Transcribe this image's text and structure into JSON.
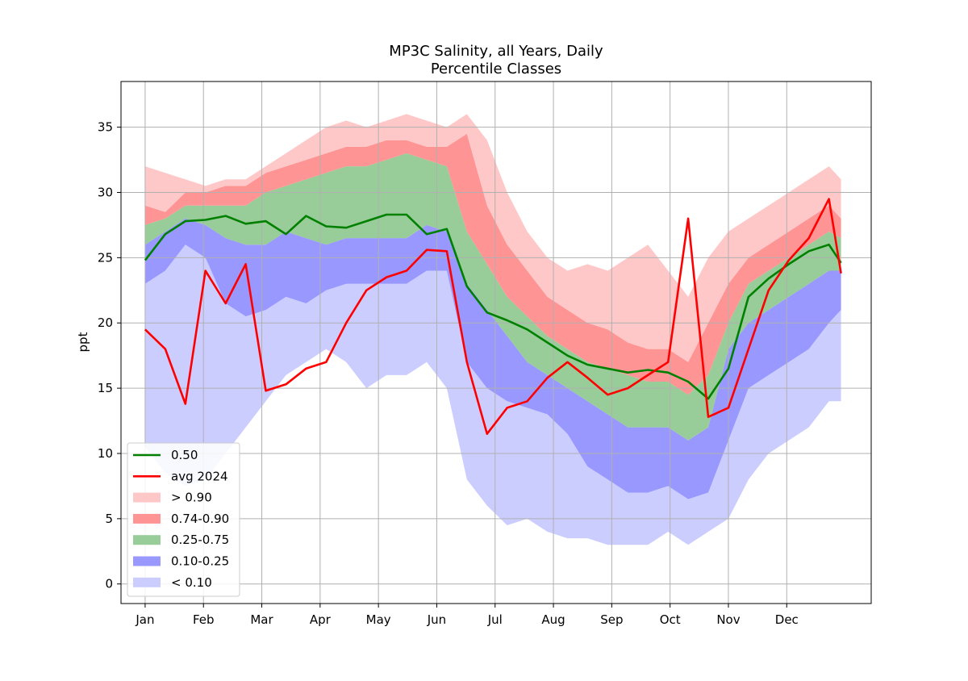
{
  "chart_data": {
    "type": "area",
    "title": "MP3C Salinity, all Years, Daily",
    "subtitle": "Percentile Classes",
    "xlabel": "",
    "ylabel": "ppt",
    "ylim": [
      -1.5,
      38.5
    ],
    "xlim": [
      -12,
      361
    ],
    "grid": true,
    "legend_position": "lower-left",
    "x_ticks": [
      {
        "label": "Jan",
        "day": 0
      },
      {
        "label": "Feb",
        "day": 29
      },
      {
        "label": "Mar",
        "day": 58
      },
      {
        "label": "Apr",
        "day": 87
      },
      {
        "label": "May",
        "day": 116
      },
      {
        "label": "Jun",
        "day": 145
      },
      {
        "label": "Jul",
        "day": 174
      },
      {
        "label": "Aug",
        "day": 203
      },
      {
        "label": "Sep",
        "day": 232
      },
      {
        "label": "Oct",
        "day": 261
      },
      {
        "label": "Nov",
        "day": 290
      },
      {
        "label": "Dec",
        "day": 319
      }
    ],
    "y_ticks": [
      0,
      5,
      10,
      15,
      20,
      25,
      30,
      35
    ],
    "x": [
      0,
      10,
      20,
      30,
      40,
      50,
      60,
      70,
      80,
      90,
      100,
      110,
      120,
      130,
      140,
      150,
      160,
      170,
      180,
      190,
      200,
      210,
      220,
      230,
      240,
      250,
      260,
      270,
      280,
      290,
      300,
      310,
      320,
      330,
      340,
      346
    ],
    "bands": {
      "min": [
        10.5,
        8.5,
        7.5,
        8,
        10,
        12,
        14,
        16,
        17,
        18,
        17,
        15,
        16,
        16,
        17,
        15,
        8,
        6,
        4.5,
        5,
        4,
        3.5,
        3.5,
        3,
        3,
        3,
        4,
        3,
        4,
        5,
        8,
        10,
        11,
        12,
        14,
        14
      ],
      "p10": [
        23,
        24,
        26,
        25,
        21.5,
        20.5,
        21,
        22,
        21.5,
        22.5,
        23,
        23,
        23,
        23,
        24,
        24,
        17,
        15,
        14,
        13.5,
        13,
        11.5,
        9,
        8,
        7,
        7,
        7.5,
        6.5,
        7,
        11,
        15,
        16,
        17,
        18,
        20,
        21
      ],
      "p25": [
        26,
        27,
        28,
        27.5,
        26.5,
        26,
        26,
        27,
        26.5,
        26,
        26.5,
        26.5,
        26.5,
        26.5,
        27.5,
        27,
        23,
        21,
        19,
        17,
        16,
        15,
        14,
        13,
        12,
        12,
        12,
        11,
        12,
        18,
        20,
        21,
        22,
        23,
        24,
        24
      ],
      "p75": [
        27.5,
        28,
        29,
        29,
        29,
        29,
        30,
        30.5,
        31,
        31.5,
        32,
        32,
        32.5,
        33,
        32.5,
        32,
        27,
        24.5,
        22,
        20.5,
        19,
        18,
        17,
        16.5,
        16,
        15.5,
        15.5,
        14.5,
        16,
        20,
        23,
        24,
        25,
        26,
        27,
        26.5
      ],
      "p90": [
        29,
        28.5,
        30,
        30,
        30.5,
        30.5,
        31.5,
        32,
        32.5,
        33,
        33.5,
        33.5,
        34,
        34,
        33.5,
        33.5,
        34.5,
        29,
        26,
        24,
        22,
        21,
        20,
        19.5,
        18.5,
        18,
        18,
        17,
        20,
        23,
        25,
        26,
        27,
        28,
        29,
        28
      ],
      "max": [
        32,
        31.5,
        31,
        30.5,
        31,
        31,
        32,
        33,
        34,
        35,
        35.5,
        35,
        35.5,
        36,
        35.5,
        35,
        36,
        34,
        30,
        27,
        25,
        24,
        24.5,
        24,
        25,
        26,
        24,
        22,
        25,
        27,
        28,
        29,
        30,
        31,
        32,
        31
      ]
    },
    "series": [
      {
        "name": "0.50",
        "color": "#008000",
        "values": [
          24.8,
          26.8,
          27.8,
          27.9,
          28.2,
          27.6,
          27.8,
          26.8,
          28.2,
          27.4,
          27.3,
          27.8,
          28.3,
          28.3,
          26.8,
          27.2,
          22.8,
          20.8,
          20.2,
          19.5,
          18.5,
          17.5,
          16.8,
          16.5,
          16.2,
          16.4,
          16.2,
          15.5,
          14.2,
          16.5,
          22.0,
          23.4,
          24.5,
          25.5,
          26.0,
          24.6
        ]
      },
      {
        "name": "avg 2024",
        "color": "#ff0000",
        "values": [
          19.5,
          18.0,
          13.8,
          24.0,
          21.5,
          24.5,
          14.8,
          15.3,
          16.5,
          17.0,
          20.0,
          22.5,
          23.5,
          24.0,
          25.6,
          25.5,
          17.0,
          11.5,
          13.5,
          14.0,
          15.8,
          17.0,
          15.8,
          14.5,
          15.0,
          16.0,
          17.0,
          28.0,
          12.8,
          13.5,
          18.0,
          22.5,
          24.8,
          26.5,
          29.5,
          23.8
        ]
      }
    ],
    "legend": [
      {
        "label": "0.50",
        "kind": "line",
        "color": "#008000"
      },
      {
        "label": "avg 2024",
        "kind": "line",
        "color": "#ff0000"
      },
      {
        "label": "> 0.90",
        "kind": "patch",
        "color": "#ffc8c8"
      },
      {
        "label": "0.74-0.90",
        "kind": "patch",
        "color": "#ff9494"
      },
      {
        "label": "0.25-0.75",
        "kind": "patch",
        "color": "#98cc98"
      },
      {
        "label": "0.10-0.25",
        "kind": "patch",
        "color": "#9898ff"
      },
      {
        "label": "< 0.10",
        "kind": "patch",
        "color": "#cccdff"
      }
    ],
    "band_colors": {
      "gt90": "#ffc8c8",
      "p74_90": "#ff9494",
      "p25_75": "#98cc98",
      "p10_25": "#9898ff",
      "lt10": "#cccdff"
    }
  }
}
